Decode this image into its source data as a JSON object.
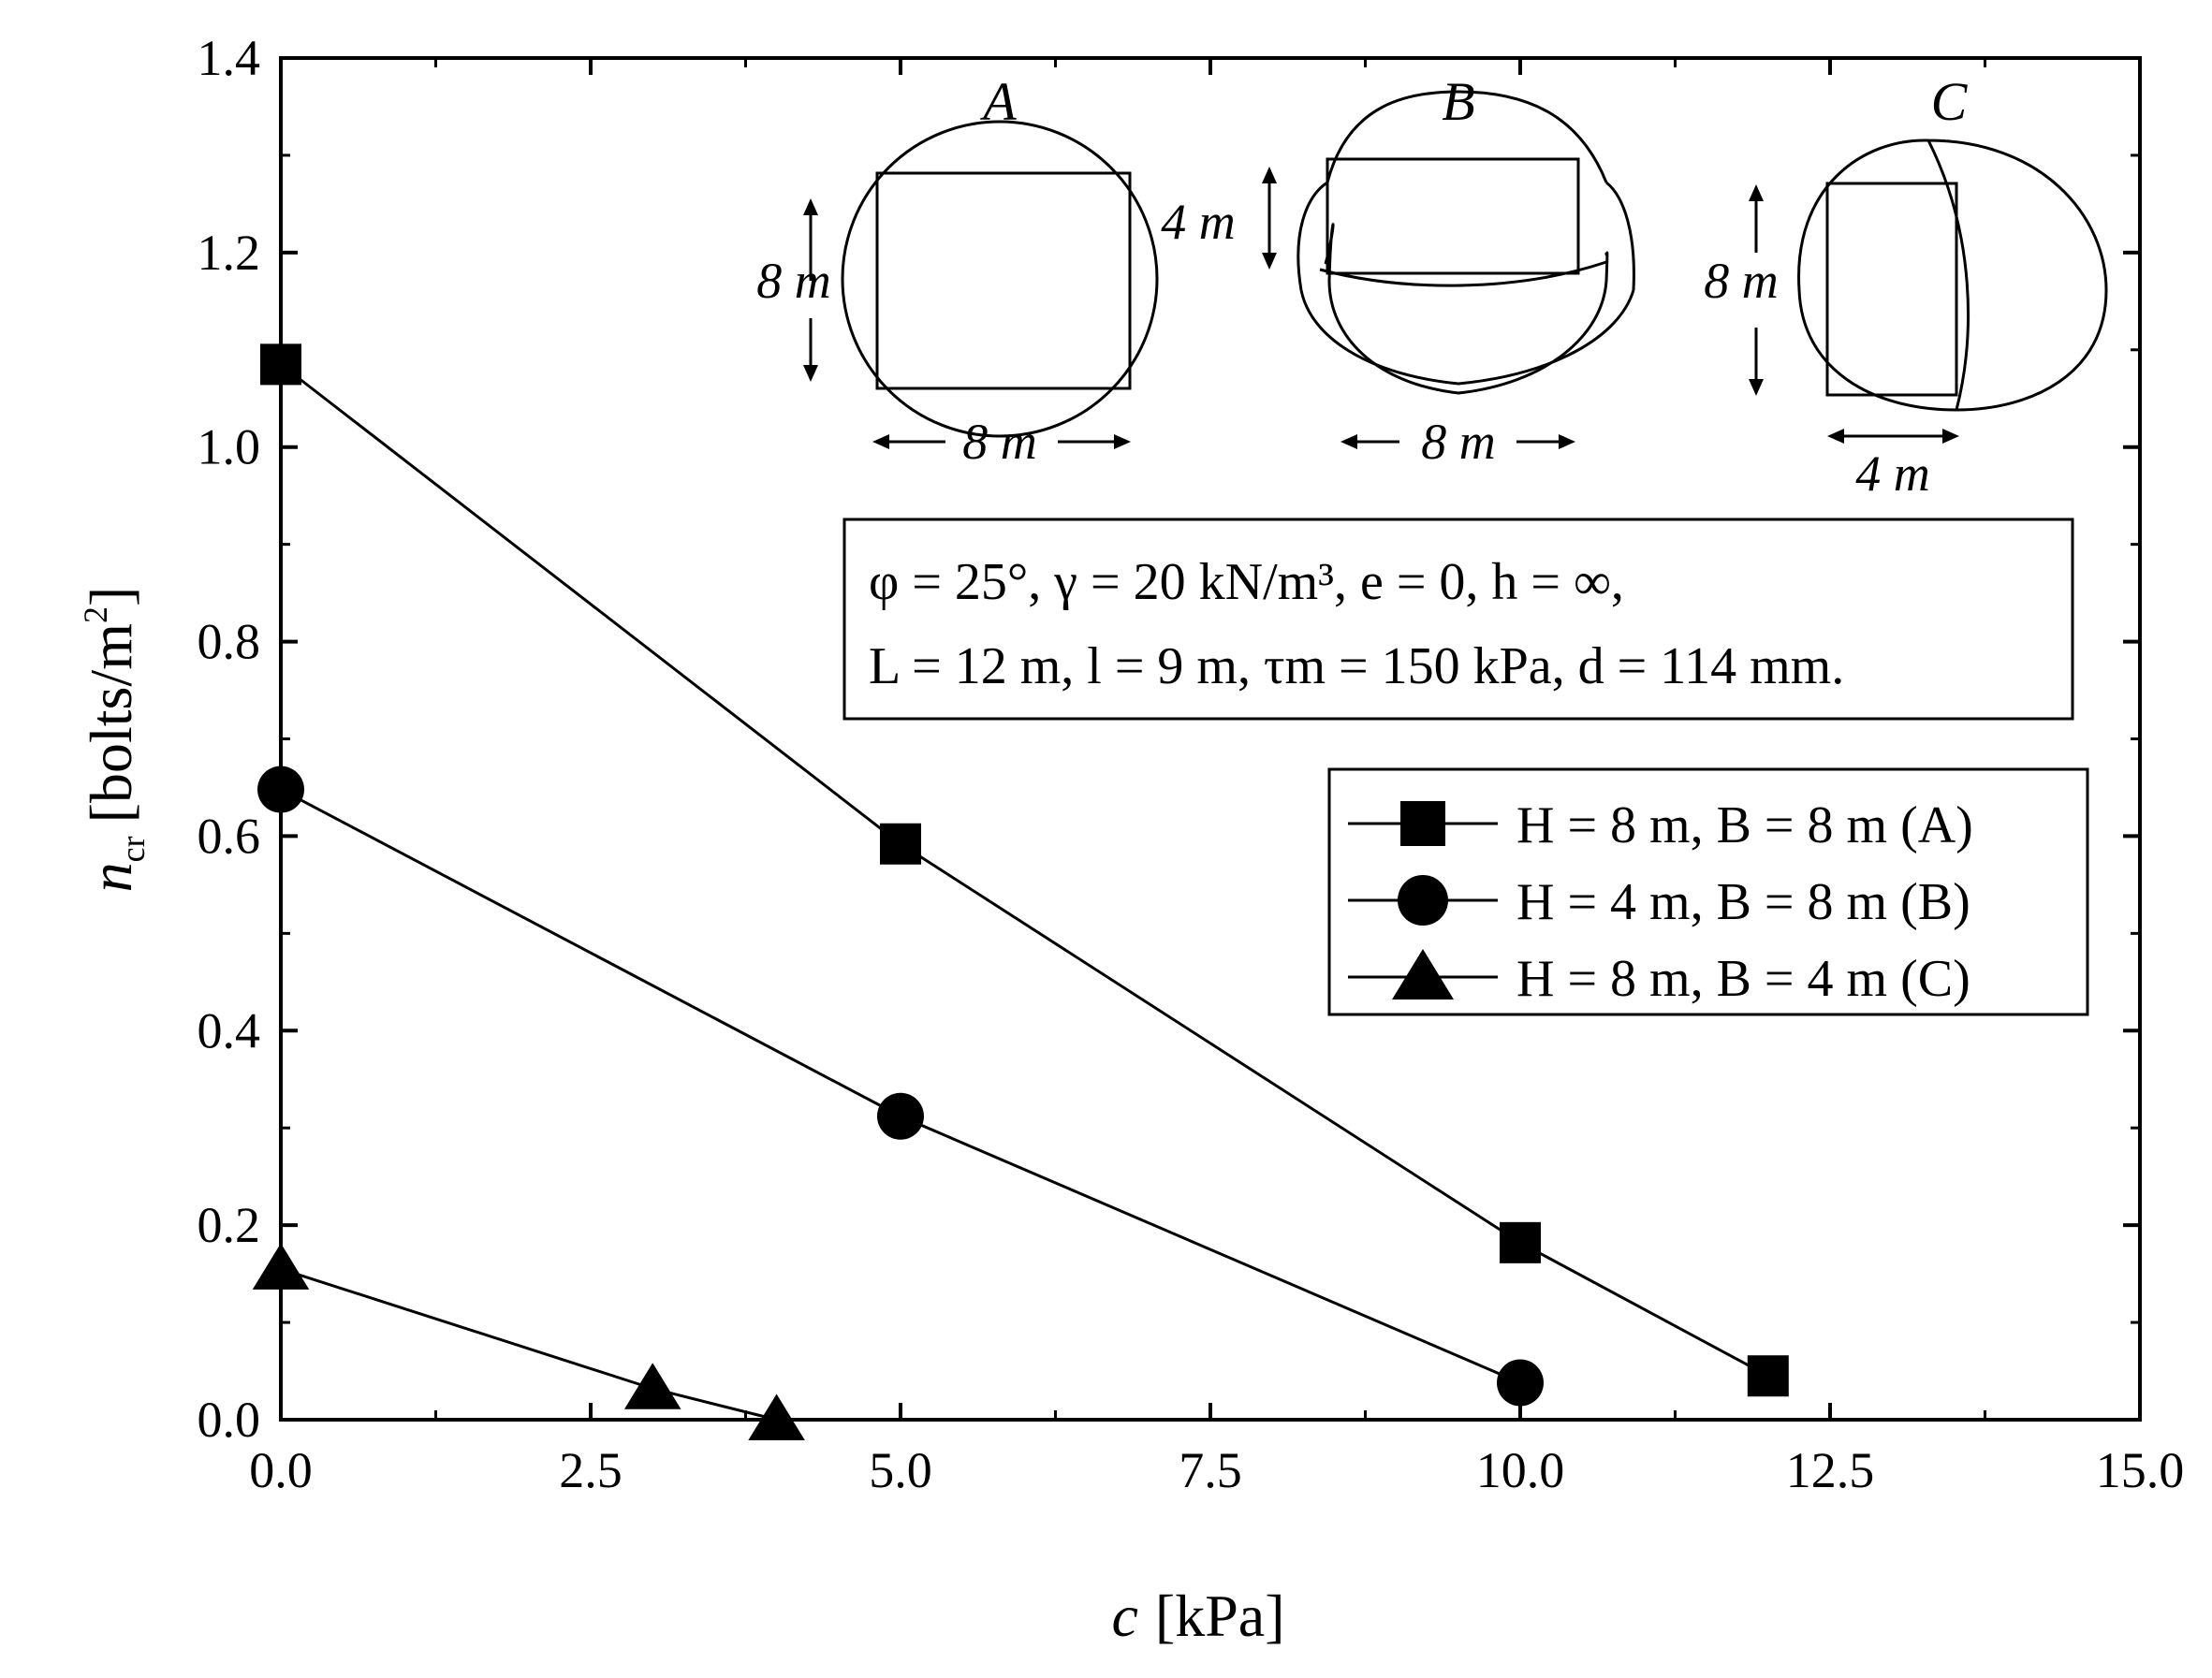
{
  "chart_data": {
    "type": "line",
    "title": "",
    "xlabel": "c",
    "xlabel_unit": "[kPa]",
    "ylabel": "n",
    "ylabel_sub": "cr",
    "ylabel_unit": "[bolts/m",
    "ylabel_unit_sup": "2",
    "ylabel_unit_close": "]",
    "xlim": [
      0,
      15
    ],
    "ylim": [
      0,
      1.4
    ],
    "x_ticks": [
      "0.0",
      "2.5",
      "5.0",
      "7.5",
      "10.0",
      "12.5",
      "15.0"
    ],
    "y_ticks": [
      "0.0",
      "0.2",
      "0.4",
      "0.6",
      "0.8",
      "1.0",
      "1.2",
      "1.4"
    ],
    "grid": false,
    "legend_position": "middle-right",
    "series": [
      {
        "name": "H = 8 m, B = 8 m (A)",
        "marker": "square",
        "x": [
          0,
          5,
          10,
          12
        ],
        "y": [
          1.085,
          0.592,
          0.182,
          0.045
        ]
      },
      {
        "name": "H = 4 m, B = 8 m (B)",
        "marker": "circle",
        "x": [
          0,
          5,
          10
        ],
        "y": [
          0.648,
          0.312,
          0.038
        ]
      },
      {
        "name": "H = 8 m, B = 4 m (C)",
        "marker": "triangle",
        "x": [
          0,
          3,
          4
        ],
        "y": [
          0.155,
          0.032,
          0.0
        ]
      }
    ],
    "parameters": {
      "line1": "φ = 25°, γ = 20 kN/m³, e = 0, h = ∞,",
      "line2": "L = 12 m, l = 9 m, τm = 150 kPa, d = 114 mm."
    },
    "inset": {
      "shapes": [
        {
          "label": "A",
          "width": "8 m",
          "height": "8 m"
        },
        {
          "label": "B",
          "width": "8 m",
          "height": "4 m"
        },
        {
          "label": "C",
          "width": "4 m",
          "height": "8 m"
        }
      ]
    }
  }
}
